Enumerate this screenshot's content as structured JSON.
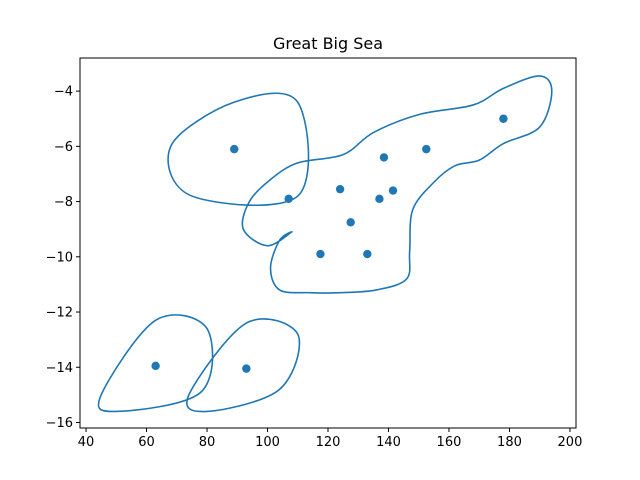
{
  "chart_data": {
    "type": "scatter",
    "title": "Great Big Sea",
    "xlabel": "",
    "ylabel": "",
    "xlim": [
      38,
      202
    ],
    "ylim": [
      -16.2,
      -2.8
    ],
    "x_ticks": [
      40,
      60,
      80,
      100,
      120,
      140,
      160,
      180,
      200
    ],
    "y_ticks": [
      -4,
      -6,
      -8,
      -10,
      -12,
      -14,
      -16
    ],
    "x_tick_labels": [
      "40",
      "60",
      "80",
      "100",
      "120",
      "140",
      "160",
      "180",
      "200"
    ],
    "y_tick_labels": [
      "−4",
      "−6",
      "−8",
      "−10",
      "−12",
      "−14",
      "−16"
    ],
    "grid": false,
    "legend": "none",
    "color": "#1f77b4",
    "points": [
      {
        "x": 89,
        "y": -6.1
      },
      {
        "x": 107,
        "y": -7.9
      },
      {
        "x": 117.5,
        "y": -9.9
      },
      {
        "x": 124,
        "y": -7.55
      },
      {
        "x": 127.5,
        "y": -8.75
      },
      {
        "x": 133,
        "y": -9.9
      },
      {
        "x": 137,
        "y": -7.9
      },
      {
        "x": 138.5,
        "y": -6.4
      },
      {
        "x": 141.5,
        "y": -7.6
      },
      {
        "x": 152.5,
        "y": -6.1
      },
      {
        "x": 178,
        "y": -5.0
      },
      {
        "x": 63,
        "y": -13.95
      },
      {
        "x": 93,
        "y": -14.05
      }
    ],
    "outlines": [
      [
        [
          89,
          -4.4
        ],
        [
          110,
          -4.4
        ],
        [
          110,
          -7.8
        ],
        [
          75,
          -7.8
        ],
        [
          68,
          -6.0
        ]
      ],
      [
        [
          63,
          -12.3
        ],
        [
          80,
          -12.6
        ],
        [
          78,
          -14.9
        ],
        [
          50,
          -15.6
        ],
        [
          45,
          -15.0
        ]
      ],
      [
        [
          93,
          -12.4
        ],
        [
          110,
          -12.8
        ],
        [
          104,
          -14.8
        ],
        [
          80,
          -15.6
        ],
        [
          74,
          -15.0
        ]
      ],
      [
        [
          110,
          -6.6
        ],
        [
          125,
          -6.3
        ],
        [
          135,
          -5.5
        ],
        [
          150,
          -4.85
        ],
        [
          168,
          -4.5
        ],
        [
          178,
          -3.9
        ],
        [
          190,
          -3.45
        ],
        [
          194,
          -4.0
        ],
        [
          190,
          -5.3
        ],
        [
          178,
          -5.9
        ],
        [
          170,
          -6.5
        ],
        [
          162,
          -6.7
        ],
        [
          155,
          -7.3
        ],
        [
          148,
          -8.3
        ],
        [
          147,
          -9.8
        ],
        [
          146,
          -10.8
        ],
        [
          136,
          -11.2
        ],
        [
          124,
          -11.3
        ],
        [
          114,
          -11.3
        ],
        [
          104,
          -11.2
        ],
        [
          101,
          -10.4
        ],
        [
          104,
          -9.4
        ],
        [
          108,
          -9.1
        ],
        [
          100,
          -9.6
        ],
        [
          92,
          -9.0
        ],
        [
          94,
          -8.0
        ],
        [
          101,
          -7.2
        ]
      ]
    ]
  }
}
